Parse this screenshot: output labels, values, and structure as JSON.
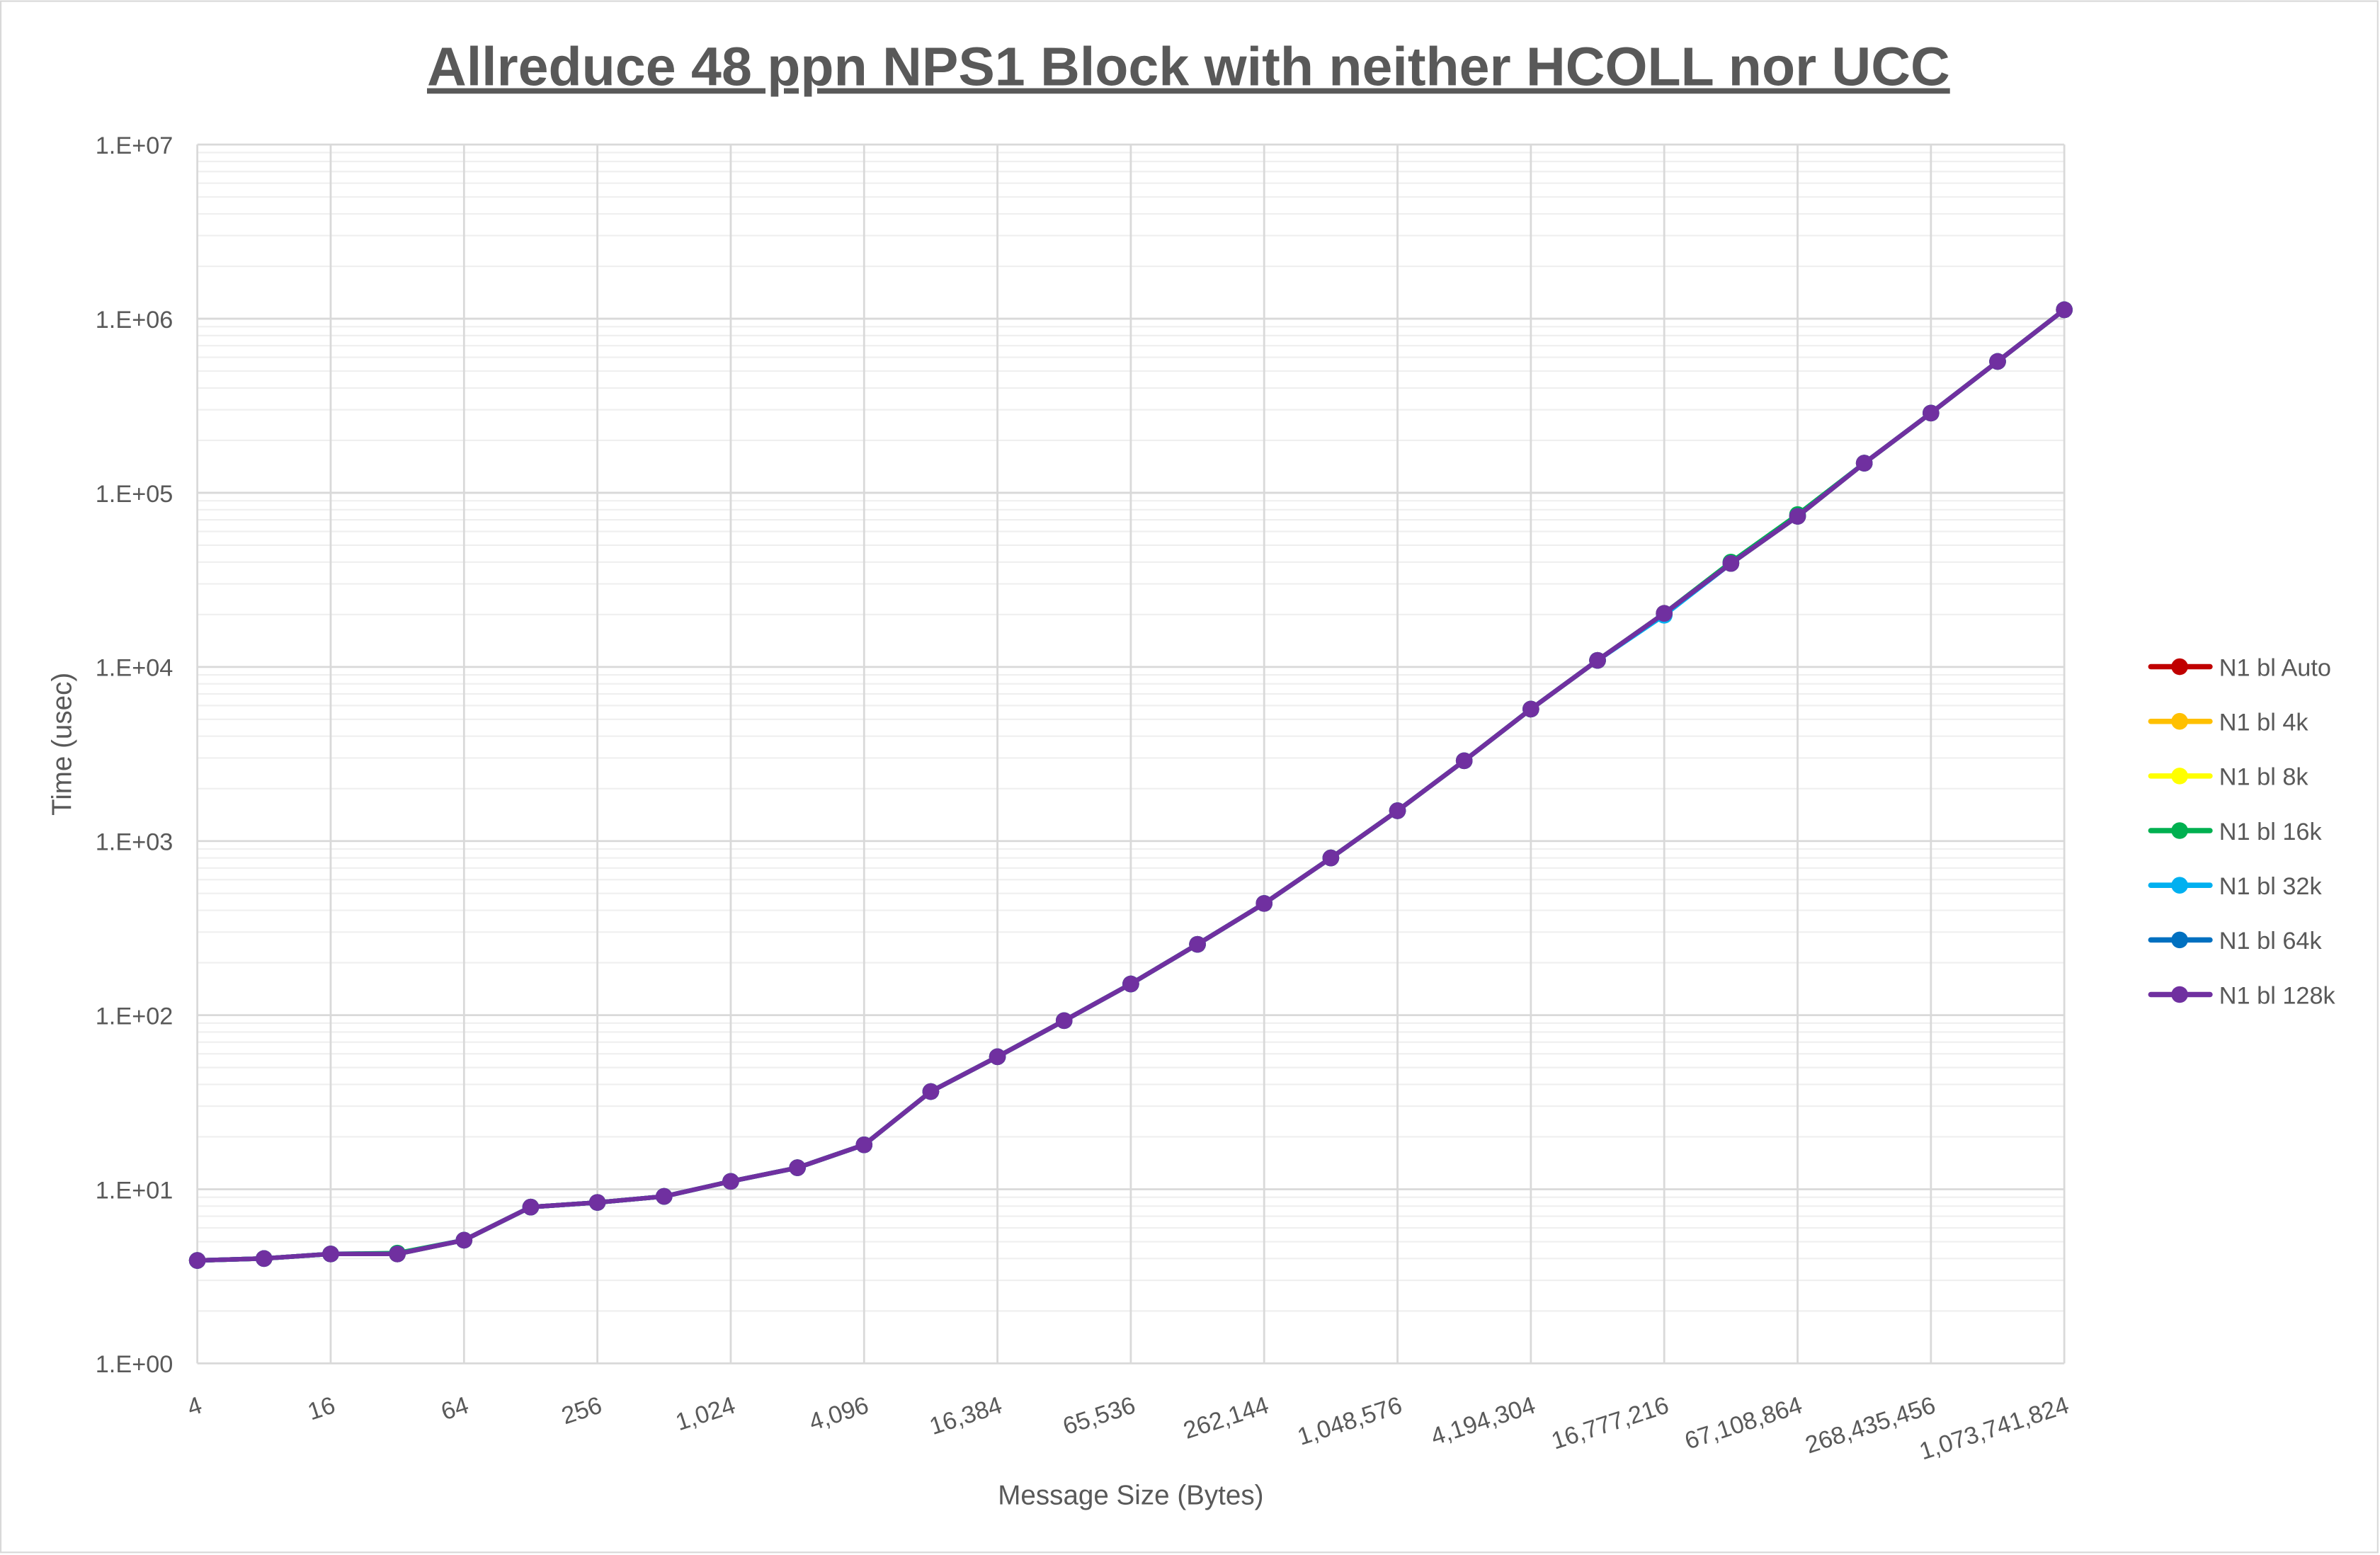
{
  "chart_data": {
    "type": "line",
    "title": "Allreduce 48 ppn NPS1 Block with neither HCOLL nor UCC",
    "xlabel": "Message Size (Bytes)",
    "ylabel": "Time (usec)",
    "x_scale": "log2",
    "y_scale": "log10",
    "ylim": [
      1,
      10000000
    ],
    "xlim": [
      4,
      1073741824
    ],
    "grid": true,
    "legend_position": "right",
    "x_tick_labels": [
      "4",
      "16",
      "64",
      "256",
      "1,024",
      "4,096",
      "16,384",
      "65,536",
      "262,144",
      "1,048,576",
      "4,194,304",
      "16,777,216",
      "67,108,864",
      "268,435,456",
      "1,073,741,824"
    ],
    "y_tick_labels": [
      "1.E+00",
      "1.E+01",
      "1.E+02",
      "1.E+03",
      "1.E+04",
      "1.E+05",
      "1.E+06",
      "1.E+07"
    ],
    "x": [
      4,
      8,
      16,
      32,
      64,
      128,
      256,
      512,
      1024,
      2048,
      4096,
      8192,
      16384,
      32768,
      65536,
      131072,
      262144,
      524288,
      1048576,
      2097152,
      4194304,
      8388608,
      16777216,
      33554432,
      67108864,
      134217728,
      268435456,
      536870912,
      1073741824
    ],
    "series": [
      {
        "name": "N1 bl Auto",
        "color": "#C00000",
        "values": [
          3.9,
          4.0,
          4.25,
          4.25,
          5.1,
          7.9,
          8.4,
          9.1,
          11.1,
          13.3,
          18.0,
          36.4,
          57.7,
          93,
          151,
          255,
          438,
          800,
          1493,
          2890,
          5725,
          10900,
          20300,
          39300,
          73300,
          148000,
          287000,
          568000,
          1125000
        ]
      },
      {
        "name": "N1 bl 4k",
        "color": "#FFC000",
        "values": [
          3.9,
          4.0,
          4.25,
          4.25,
          5.1,
          7.9,
          8.4,
          9.1,
          11.1,
          13.3,
          18.0,
          36.4,
          57.7,
          93,
          151,
          255,
          438,
          800,
          1493,
          2890,
          5725,
          10900,
          20300,
          39300,
          73300,
          148000,
          287000,
          568000,
          1125000
        ]
      },
      {
        "name": "N1 bl 8k",
        "color": "#FFFF00",
        "values": [
          3.9,
          4.0,
          4.25,
          4.25,
          5.1,
          7.9,
          8.4,
          9.1,
          11.1,
          13.3,
          18.0,
          36.4,
          57.7,
          93,
          151,
          255,
          438,
          800,
          1493,
          2890,
          5725,
          10900,
          20300,
          39300,
          73300,
          148000,
          287000,
          568000,
          1125000
        ]
      },
      {
        "name": "N1 bl 16k",
        "color": "#00B050",
        "values": [
          3.9,
          4.0,
          4.25,
          4.3,
          5.1,
          7.9,
          8.4,
          9.1,
          11.1,
          13.3,
          18.0,
          36.4,
          57.7,
          93,
          151,
          255,
          438,
          800,
          1493,
          2890,
          5725,
          10900,
          20300,
          40000,
          75000,
          148000,
          287000,
          568000,
          1125000
        ]
      },
      {
        "name": "N1 bl 32k",
        "color": "#00B0F0",
        "values": [
          3.9,
          4.0,
          4.25,
          4.25,
          5.1,
          7.9,
          8.4,
          9.1,
          11.1,
          13.3,
          18.0,
          36.4,
          57.7,
          93,
          151,
          255,
          438,
          800,
          1493,
          2890,
          5725,
          10900,
          19800,
          39300,
          73300,
          148000,
          287000,
          568000,
          1125000
        ]
      },
      {
        "name": "N1 bl 64k",
        "color": "#0070C0",
        "values": [
          3.9,
          4.0,
          4.25,
          4.25,
          5.1,
          7.9,
          8.4,
          9.1,
          11.1,
          13.3,
          18.0,
          36.4,
          57.7,
          93,
          151,
          255,
          438,
          800,
          1493,
          2890,
          5725,
          10900,
          20300,
          39300,
          73300,
          148000,
          287000,
          568000,
          1125000
        ]
      },
      {
        "name": "N1 bl 128k",
        "color": "#7030A0",
        "values": [
          3.9,
          4.0,
          4.25,
          4.25,
          5.1,
          7.9,
          8.4,
          9.1,
          11.1,
          13.3,
          18.0,
          36.4,
          57.7,
          93,
          151,
          255,
          438,
          800,
          1493,
          2890,
          5725,
          10900,
          20300,
          39300,
          73300,
          148000,
          287000,
          568000,
          1125000
        ]
      }
    ]
  }
}
